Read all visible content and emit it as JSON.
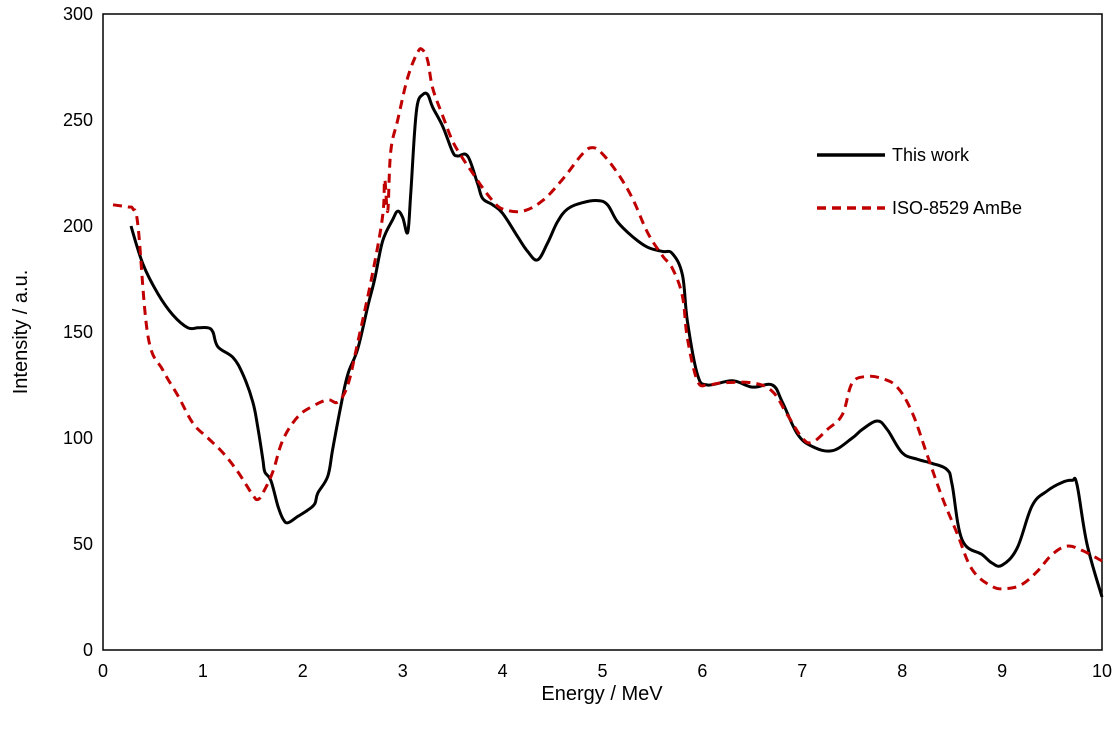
{
  "chart_data": {
    "type": "line",
    "title": "",
    "xlabel": "Energy / MeV",
    "ylabel": "Intensity / a.u.",
    "xlim": [
      0,
      10
    ],
    "ylim": [
      0,
      300
    ],
    "xticks": [
      0,
      1,
      2,
      3,
      4,
      5,
      6,
      7,
      8,
      9,
      10
    ],
    "yticks": [
      0,
      50,
      100,
      150,
      200,
      250,
      300
    ],
    "grid": false,
    "legend": "right",
    "series": [
      {
        "name": "This work",
        "color": "#000000",
        "dash": "solid",
        "x": [
          0.28,
          0.4,
          0.55,
          0.7,
          0.85,
          0.95,
          1.05,
          1.1,
          1.15,
          1.3,
          1.4,
          1.5,
          1.55,
          1.6,
          1.62,
          1.68,
          1.75,
          1.8,
          1.85,
          1.95,
          2.05,
          2.12,
          2.15,
          2.25,
          2.3,
          2.38,
          2.45,
          2.55,
          2.65,
          2.72,
          2.8,
          2.9,
          2.95,
          3.0,
          3.05,
          3.08,
          3.12,
          3.15,
          3.2,
          3.25,
          3.3,
          3.4,
          3.5,
          3.55,
          3.65,
          3.75,
          3.8,
          3.9,
          4.0,
          4.15,
          4.25,
          4.35,
          4.45,
          4.55,
          4.65,
          4.8,
          4.95,
          5.05,
          5.15,
          5.3,
          5.45,
          5.6,
          5.7,
          5.8,
          5.85,
          5.95,
          6.05,
          6.3,
          6.5,
          6.7,
          6.8,
          6.95,
          7.1,
          7.3,
          7.5,
          7.6,
          7.75,
          7.85,
          8.0,
          8.15,
          8.3,
          8.45,
          8.5,
          8.6,
          8.8,
          8.9,
          9.0,
          9.15,
          9.3,
          9.45,
          9.6,
          9.7,
          9.75,
          9.85,
          10.0
        ],
        "y": [
          200,
          182,
          168,
          158,
          152,
          152,
          152,
          150,
          143,
          138,
          130,
          117,
          105,
          90,
          84,
          80,
          68,
          62,
          60,
          63,
          66,
          69,
          74,
          82,
          95,
          115,
          130,
          142,
          162,
          175,
          193,
          203,
          207,
          204,
          197,
          215,
          245,
          258,
          262,
          262,
          256,
          247,
          235,
          233,
          233,
          220,
          213,
          210,
          206,
          195,
          188,
          184,
          192,
          202,
          208,
          211,
          212,
          210,
          202,
          195,
          190,
          188,
          187,
          177,
          155,
          130,
          125,
          127,
          124,
          125,
          117,
          102,
          96,
          94,
          100,
          104,
          108,
          104,
          93,
          90,
          88,
          85,
          78,
          52,
          45,
          41,
          40,
          48,
          68,
          75,
          79,
          80,
          78,
          50,
          25
        ]
      },
      {
        "name": "ISO-8529 AmBe",
        "color": "#C00000",
        "dash": "dashed",
        "x": [
          0.1,
          0.25,
          0.3,
          0.35,
          0.45,
          0.6,
          0.75,
          0.9,
          1.05,
          1.2,
          1.35,
          1.5,
          1.55,
          1.6,
          1.7,
          1.8,
          1.95,
          2.1,
          2.25,
          2.35,
          2.45,
          2.55,
          2.7,
          2.8,
          2.82,
          2.85,
          2.88,
          2.95,
          3.05,
          3.15,
          3.2,
          3.25,
          3.3,
          3.4,
          3.5,
          3.6,
          3.7,
          3.8,
          3.9,
          4.0,
          4.2,
          4.4,
          4.6,
          4.8,
          4.9,
          5.0,
          5.15,
          5.3,
          5.45,
          5.6,
          5.7,
          5.8,
          5.85,
          5.95,
          6.05,
          6.2,
          6.5,
          6.7,
          6.85,
          7.0,
          7.1,
          7.25,
          7.4,
          7.5,
          7.65,
          7.8,
          7.95,
          8.1,
          8.25,
          8.4,
          8.55,
          8.7,
          8.9,
          9.05,
          9.2,
          9.35,
          9.5,
          9.65,
          9.8,
          10.0
        ],
        "y": [
          210,
          209,
          208,
          200,
          148,
          132,
          120,
          107,
          100,
          93,
          84,
          73,
          71,
          74,
          84,
          99,
          110,
          115,
          118,
          117,
          125,
          145,
          178,
          205,
          222,
          207,
          235,
          250,
          270,
          282,
          283,
          278,
          265,
          252,
          240,
          232,
          225,
          218,
          212,
          208,
          207,
          212,
          222,
          234,
          237,
          234,
          225,
          213,
          197,
          186,
          180,
          167,
          147,
          127,
          125,
          126,
          126,
          122,
          111,
          100,
          98,
          104,
          111,
          126,
          129,
          128,
          124,
          112,
          92,
          72,
          55,
          38,
          30,
          29,
          31,
          37,
          45,
          49,
          47,
          42
        ]
      }
    ]
  }
}
